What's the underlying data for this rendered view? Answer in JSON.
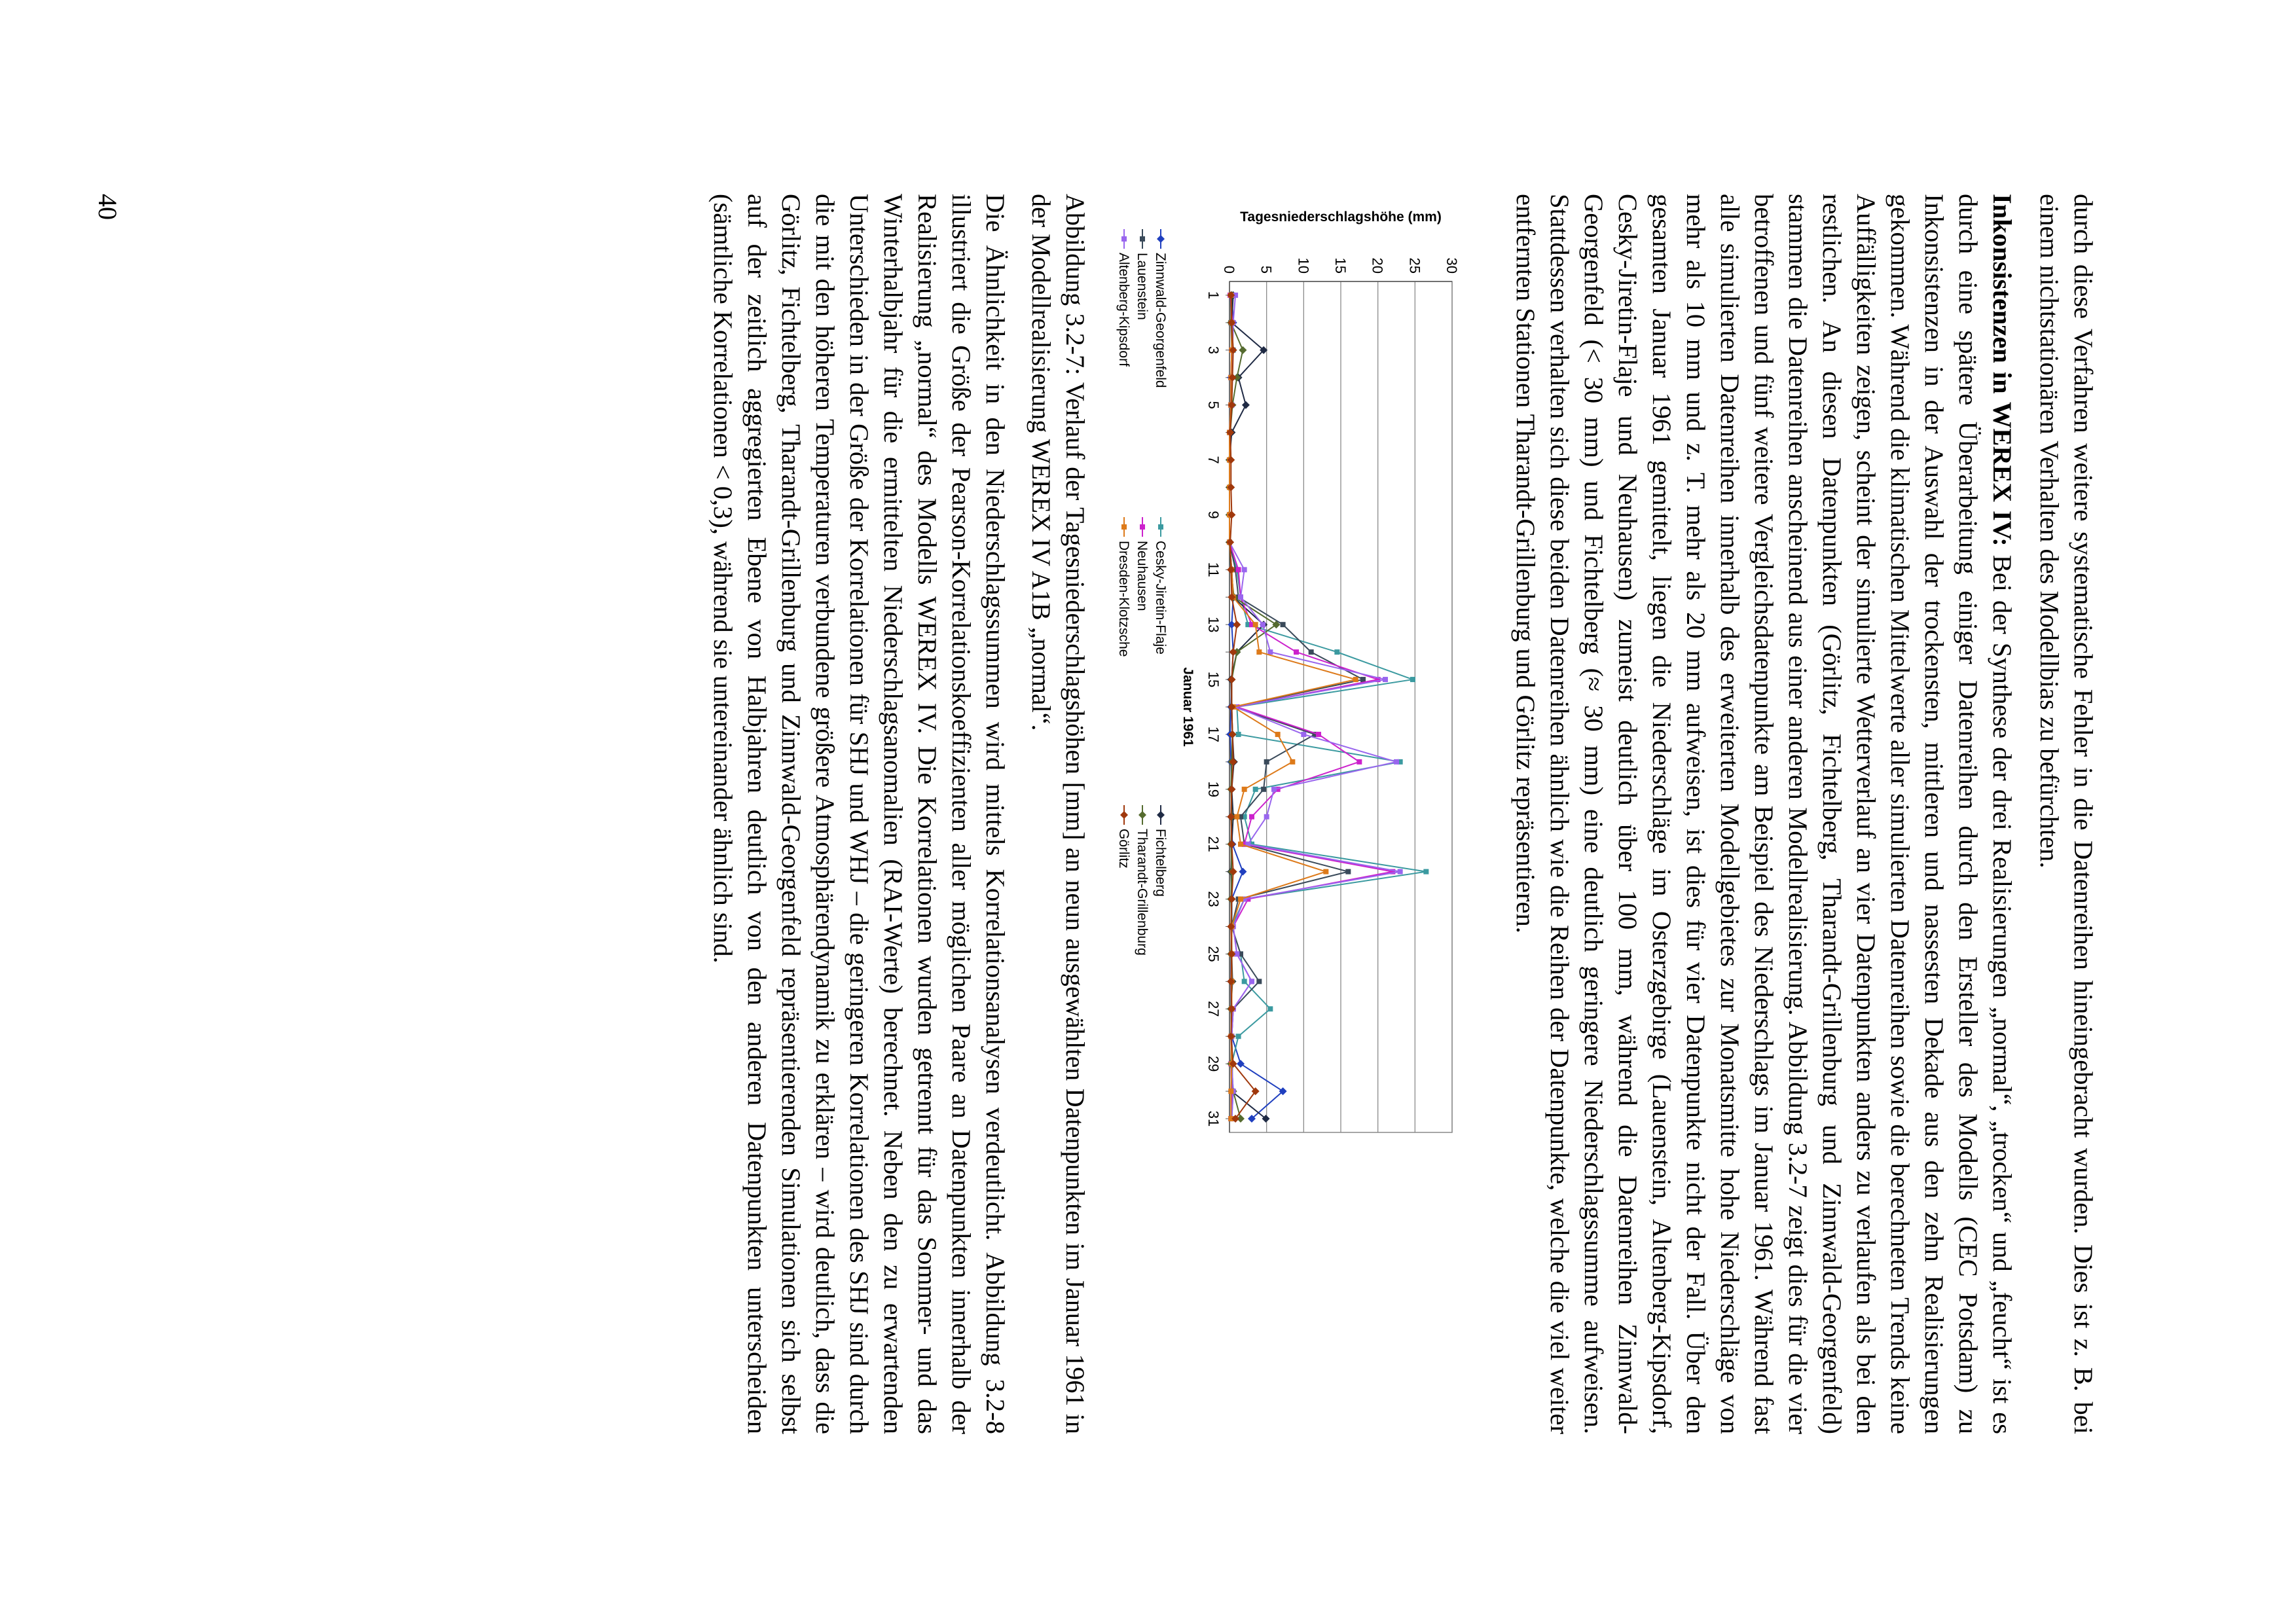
{
  "paragraphs": {
    "p1": "durch diese Verfahren weitere systematische Fehler in die Datenreihen hineingebracht wurden. Dies ist z. B. bei einem nichtstationären Verhalten des Modellbias zu befürchten.",
    "p2_heading": "Inkonsistenzen in WEREX IV:",
    "p2_body": " Bei der Synthese der drei Realisierungen „normal“, „trocken“ und „feucht“ ist es durch eine spätere Überarbeitung einiger Datenreihen durch den Ersteller des Modells (CEC Potsdam) zu Inkonsistenzen in der Auswahl der trockensten, mittleren und nassesten Dekade aus den zehn Realisierungen gekommen. Während die klimatischen Mittelwerte aller simulierten Datenreihen sowie die berechneten Trends keine Auffälligkeiten zeigen, scheint der simulierte Wetterverlauf an vier Datenpunkten anders zu verlaufen als bei den restlichen. An diesen Datenpunkten (Görlitz, Fichtelberg, Tharandt-Grillenburg und Zinnwald-Georgenfeld) stammen die Datenreihen anscheinend aus einer anderen Modellrealisierung. Abbildung 3.2-7 zeigt dies für die vier betroffenen und fünf weitere Vergleichsdatenpunkte am Beispiel des Niederschlags im Januar 1961. Während fast alle simulierten Datenreihen innerhalb des erweiterten Modellgebietes zur Monatsmitte hohe Niederschläge von mehr als 10 mm und z. T. mehr als 20 mm aufweisen, ist dies für vier Datenpunkte nicht der Fall. Über den gesamten Januar 1961 gemittelt, liegen die Niederschläge im Osterzgebirge (Lauenstein, Altenberg-Kipsdorf, Cesky-Jiretin-Flaje und Neuhausen) zumeist deutlich über 100 mm, während die Datenreihen Zinnwald-Georgenfeld (< 30 mm) und Fichtelberg (≈ 30 mm) eine deutlich geringere Niederschlagssumme aufweisen. Stattdessen verhalten sich diese beiden Datenreihen ähnlich wie die Reihen der Datenpunkte, welche die viel weiter entfernten Stationen Tharandt-Grillenburg und Görlitz repräsentieren.",
    "caption": "Abbildung 3.2-7: Verlauf der Tagesniederschlagshöhen [mm] an neun ausgewählten Datenpunkten im Januar 1961 in der Modellrealisierung WEREX IV A1B „normal“.",
    "p3": "Die Ähnlichkeit in den Niederschlagssummen wird mittels Korrelationsanalysen verdeutlicht. Abbildung 3.2-8 illustriert die Größe der Pearson-Korrelationskoeffizienten aller möglichen Paare an Datenpunkten innerhalb der Realisierung „normal“ des Modells WEREX IV. Die Korrelationen wurden getrennt für das Sommer- und das Winterhalbjahr für die ermittelten Niederschlagsanomalien (RAI-Werte) berechnet. Neben den zu erwartenden Unterschieden in der Größe der Korrelationen für SHJ und WHJ – die geringeren Korrelationen des SHJ sind durch die mit den höheren Temperaturen verbundene größere Atmosphärendynamik zu erklären – wird deutlich, dass die Görlitz, Fichtelberg, Tharandt-Grillenburg und Zinnwald-Georgenfeld repräsentierenden Simulationen sich selbst auf der zeitlich aggregierten Ebene von Halbjahren deutlich von den anderen Datenpunkten unterscheiden (sämtliche Korrelationen < 0,3), während sie untereinander ähnlich sind."
  },
  "page_number": "40",
  "chart_data": {
    "type": "line",
    "title": "",
    "xlabel": "Januar 1961",
    "ylabel": "Tagesniederschlagshöhe (mm)",
    "ylim": [
      0,
      30
    ],
    "yticks": [
      0,
      5,
      10,
      15,
      20,
      25,
      30
    ],
    "xticks": [
      1,
      3,
      5,
      7,
      9,
      11,
      13,
      15,
      17,
      19,
      21,
      23,
      25,
      27,
      29,
      31
    ],
    "grid": "horizontal",
    "legend_placement": "bottom",
    "x": [
      1,
      2,
      3,
      4,
      5,
      6,
      7,
      8,
      9,
      10,
      11,
      12,
      13,
      14,
      15,
      16,
      17,
      18,
      19,
      20,
      21,
      22,
      23,
      24,
      25,
      26,
      27,
      28,
      29,
      30,
      31
    ],
    "series": [
      {
        "name": "Zinnwald-Georgenfeld",
        "color": "#1f3fbf",
        "marker": "diamond",
        "values": [
          0.3,
          0.5,
          0.4,
          0.2,
          0.3,
          0.1,
          0,
          0,
          0,
          0,
          0.2,
          0.5,
          0.3,
          0.5,
          0.3,
          0.2,
          0.1,
          0.2,
          0.3,
          0.2,
          0.4,
          1.8,
          0.3,
          0.3,
          0.2,
          0.2,
          0.2,
          0.3,
          1.5,
          7.2,
          3.0
        ]
      },
      {
        "name": "Cesky-Jiretin-Flaje",
        "color": "#3b9aa0",
        "marker": "square",
        "values": [
          0.1,
          0.3,
          0.5,
          0.2,
          0.3,
          0,
          0,
          0,
          0,
          0,
          1.0,
          1.5,
          2.5,
          14.5,
          24.7,
          1.0,
          1.2,
          23.0,
          3.5,
          2.0,
          3.0,
          26.5,
          2.0,
          0.3,
          1.5,
          2.0,
          5.5,
          1.2,
          0.3,
          0.5,
          0.3
        ]
      },
      {
        "name": "Fichtelberg",
        "color": "#1f2a44",
        "marker": "diamond",
        "values": [
          0.5,
          0.3,
          4.6,
          1.2,
          2.2,
          0.3,
          0,
          0,
          0,
          0,
          0.3,
          0.5,
          4.6,
          1.0,
          0.2,
          0.3,
          0.4,
          0.6,
          0.3,
          0.5,
          0.3,
          0.2,
          0.3,
          0.3,
          0.3,
          0.4,
          0.2,
          0.3,
          0.2,
          0.3,
          4.9
        ]
      },
      {
        "name": "Lauenstein",
        "color": "#3a4a5a",
        "marker": "square",
        "values": [
          0.2,
          0.2,
          0.3,
          0.2,
          0.2,
          0,
          0,
          0,
          0,
          0,
          0.8,
          1.2,
          7.2,
          11.0,
          18.0,
          0.6,
          11.5,
          5.0,
          4.6,
          1.5,
          2.0,
          16.0,
          1.2,
          0.3,
          1.5,
          4.0,
          0.5,
          0.3,
          0.4,
          0.3,
          0.2
        ]
      },
      {
        "name": "Neuhausen",
        "color": "#cc22cc",
        "marker": "square",
        "values": [
          0.1,
          0.4,
          0.3,
          0.2,
          0.2,
          0,
          0,
          0,
          0,
          0,
          1.2,
          1.5,
          3.0,
          9.0,
          20.0,
          1.0,
          12.0,
          17.5,
          6.5,
          3.0,
          2.0,
          22.0,
          2.5,
          0.5,
          1.0,
          3.0,
          0.5,
          0.3,
          0.2,
          0.3,
          0.2
        ]
      },
      {
        "name": "Tharandt-Grillenburg",
        "color": "#556b2f",
        "marker": "diamond",
        "values": [
          0.3,
          0.2,
          1.8,
          1.0,
          0.4,
          0.1,
          0,
          0,
          0,
          0,
          0.2,
          0.6,
          6.3,
          1.0,
          0.3,
          0.3,
          0.4,
          0.3,
          0.2,
          0.3,
          0.2,
          0.3,
          0.2,
          0.3,
          0.2,
          0.3,
          0.2,
          0.3,
          0.2,
          0.5,
          1.5
        ]
      },
      {
        "name": "Altenberg-Kipsdorf",
        "color": "#9966ee",
        "marker": "square",
        "values": [
          0.8,
          0.5,
          0.4,
          0.3,
          0.3,
          0,
          0,
          0,
          0,
          0,
          2.0,
          1.5,
          4.5,
          5.5,
          21.0,
          0.8,
          10.0,
          22.5,
          6.0,
          5.0,
          2.5,
          23.0,
          2.0,
          0.5,
          1.0,
          3.0,
          0.5,
          0.3,
          0.3,
          0.5,
          0.3
        ]
      },
      {
        "name": "Dresden-Klotzsche",
        "color": "#dd7a1a",
        "marker": "square",
        "values": [
          0.2,
          0.3,
          0.3,
          0.2,
          0.2,
          0,
          0,
          0,
          0,
          0,
          0.3,
          0.5,
          3.5,
          4.0,
          17.0,
          0.5,
          6.5,
          8.5,
          2.0,
          1.0,
          1.5,
          13.0,
          1.5,
          0.3,
          0.3,
          0.3,
          0.3,
          0.2,
          0.3,
          0.2,
          0.2
        ]
      },
      {
        "name": "Görlitz",
        "color": "#a0380c",
        "marker": "diamond",
        "values": [
          0.2,
          0.3,
          0.5,
          0.4,
          0.3,
          0.1,
          0.2,
          0.2,
          0.3,
          0.1,
          0.2,
          0.3,
          1.0,
          0.5,
          0.3,
          0.3,
          0.4,
          0.5,
          0.3,
          0.2,
          0.3,
          0.5,
          0.3,
          0.2,
          0.3,
          0.2,
          0.3,
          0.2,
          0.5,
          3.5,
          0.8
        ]
      }
    ]
  }
}
